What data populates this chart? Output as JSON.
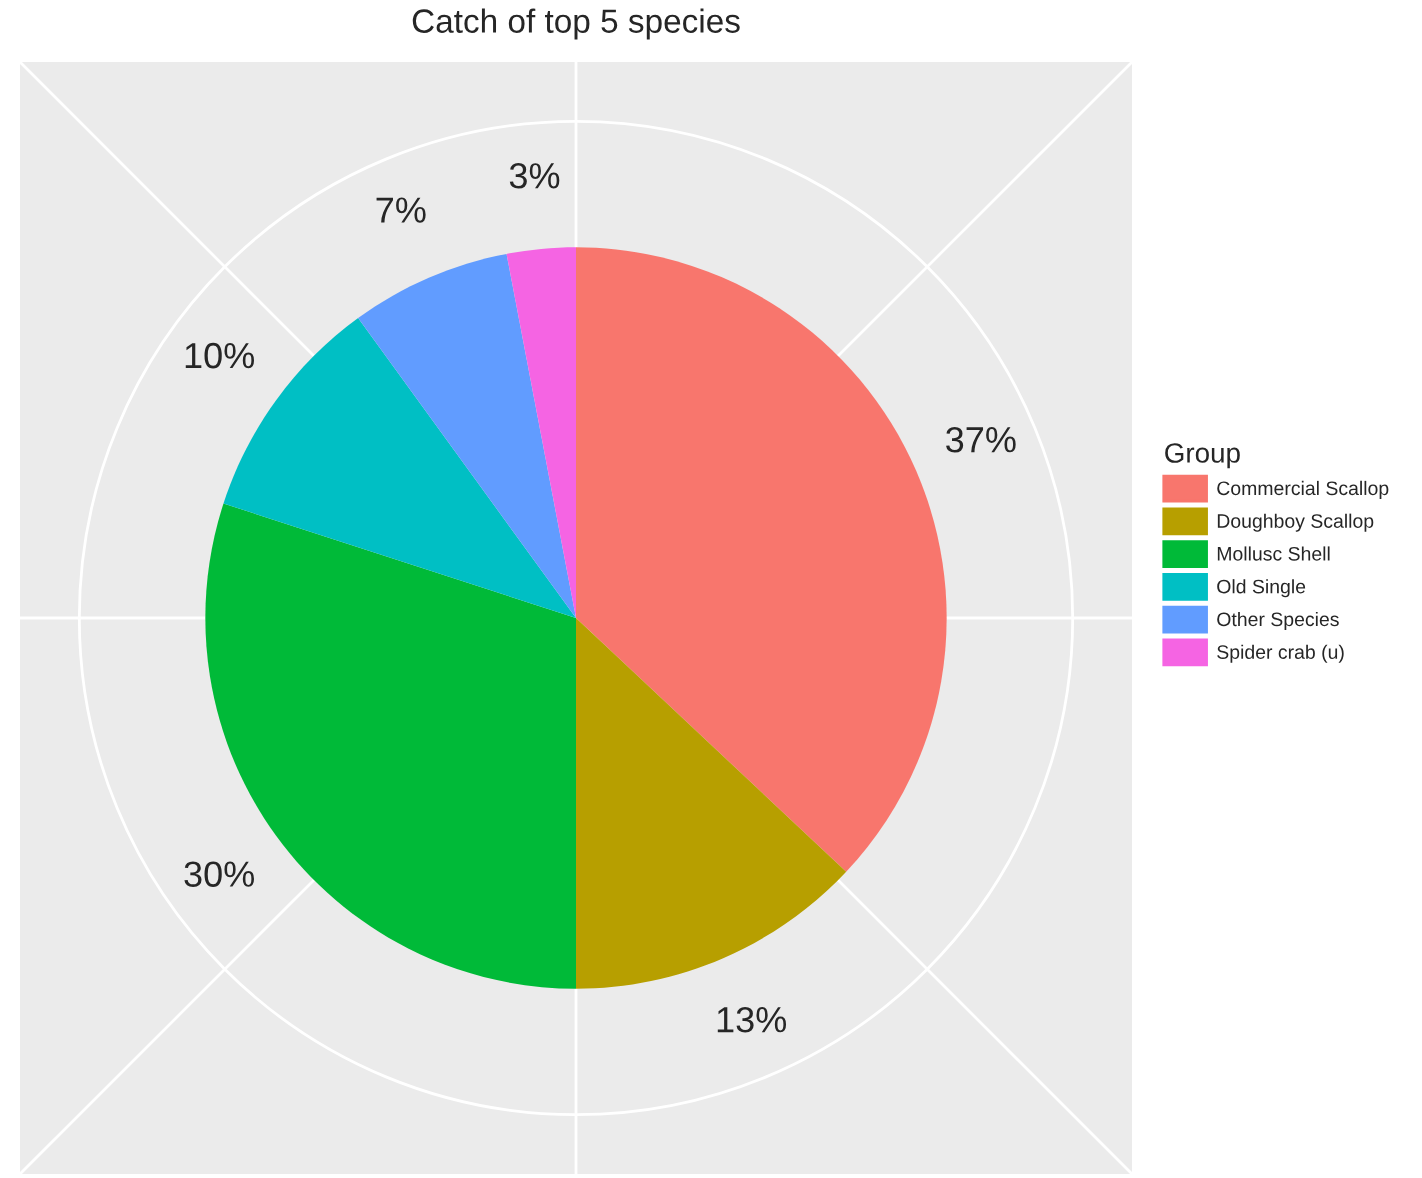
{
  "chart_data": {
    "type": "pie",
    "title": "Catch of top 5 species",
    "legend_title": "Group",
    "categories": [
      "Commercial Scallop",
      "Doughboy Scallop",
      "Mollusc Shell",
      "Old Single",
      "Other Species",
      "Spider crab (u)"
    ],
    "values": [
      37,
      13,
      30,
      10,
      7,
      3
    ],
    "colors": [
      "#f8766d",
      "#b79f00",
      "#00ba38",
      "#00bfc4",
      "#619cff",
      "#f564e3"
    ],
    "value_labels": [
      "37%",
      "13%",
      "30%",
      "10%",
      "7%",
      "3%"
    ],
    "grid": true,
    "legend": "right"
  }
}
